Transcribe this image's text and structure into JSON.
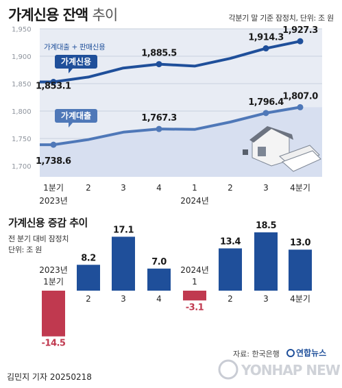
{
  "header": {
    "title_bold": "가계신용 잔액",
    "title_light": "추이",
    "note": "각분기 말 기준 잠정치, 단위: 조 원"
  },
  "chart_data": [
    {
      "type": "line",
      "categories": [
        "1분기|2023년",
        "2",
        "3",
        "4",
        "1|2024년",
        "2",
        "3",
        "4분기"
      ],
      "ylim": [
        1680,
        1950
      ],
      "yticks": [
        1700,
        1750,
        1800,
        1850,
        1900,
        1950
      ],
      "grid": true,
      "series": [
        {
          "name": "가계신용",
          "values": [
            1853.1,
            1862.0,
            1878.5,
            1885.5,
            1882.0,
            1896.0,
            1914.3,
            1927.3
          ],
          "labels": [
            "1,853.1",
            "",
            "",
            "1,885.5",
            "",
            "",
            "1,914.3",
            "1,927.3"
          ],
          "color": "#1f4f9a"
        },
        {
          "name": "가계대출",
          "values": [
            1738.6,
            1748.0,
            1761.5,
            1767.3,
            1766.5,
            1780.0,
            1796.4,
            1807.0
          ],
          "labels": [
            "1,738.6",
            "",
            "",
            "1,767.3",
            "",
            "",
            "1,796.4",
            "1,807.0"
          ],
          "color": "#4f78b8"
        }
      ],
      "annotation": "가계대출 + 판매신용"
    },
    {
      "type": "bar",
      "title": "가계신용 증감 추이",
      "subtitle": [
        "전 분기 대비 잠정치",
        "단위: 조 원"
      ],
      "categories": [
        "2023년|1분기",
        "2",
        "3",
        "4",
        "2024년|1",
        "2",
        "3",
        "4분기"
      ],
      "values": [
        -14.5,
        8.2,
        17.1,
        7.0,
        -3.1,
        13.4,
        18.5,
        13.0
      ],
      "labels": [
        "-14.5",
        "8.2",
        "17.1",
        "7.0",
        "-3.1",
        "13.4",
        "18.5",
        "13.0"
      ],
      "colors": {
        "positive": "#1f4f9a",
        "negative": "#c0394f"
      }
    }
  ],
  "footer": {
    "source": "자료: 한국은행",
    "brand": "연합뉴스",
    "author": "김민지 기자  20250218",
    "watermark": "YONHAP NEWS"
  }
}
